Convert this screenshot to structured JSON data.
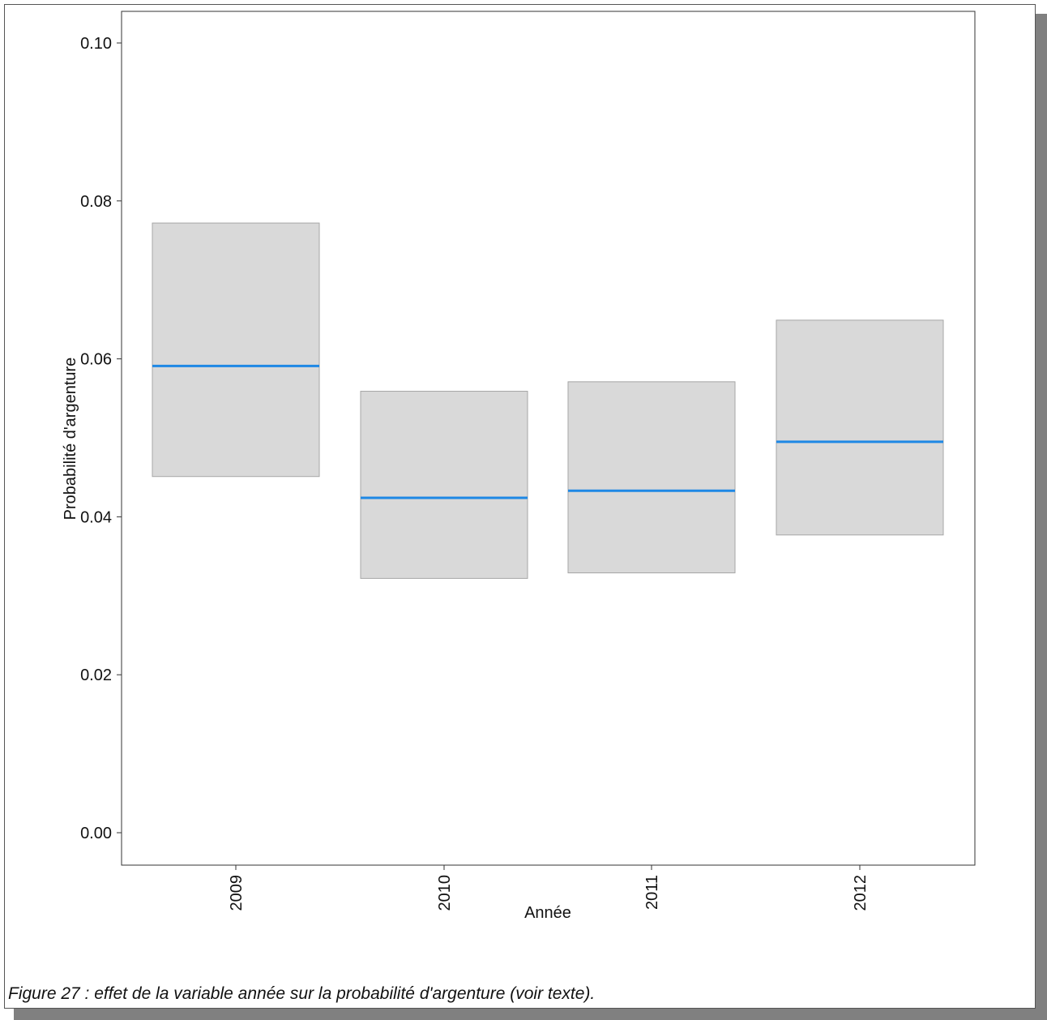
{
  "chart_data": {
    "type": "crossbar",
    "xlabel": "Année",
    "ylabel": "Probabilité d'argenture",
    "categories": [
      "2009",
      "2010",
      "2011",
      "2012"
    ],
    "series": [
      {
        "values": [
          0.0591,
          0.0424,
          0.0433,
          0.0495
        ],
        "lower": [
          0.0451,
          0.0322,
          0.0329,
          0.0377
        ],
        "upper": [
          0.0772,
          0.0559,
          0.0571,
          0.0649
        ]
      }
    ],
    "yticks": [
      "0.00",
      "0.02",
      "0.04",
      "0.06",
      "0.08",
      "0.10"
    ],
    "ylim": [
      0.0,
      0.1
    ],
    "grid": false,
    "colors": {
      "line": "#1e88e5",
      "band": "#d9d9d9",
      "band_border": "#a6a6a6"
    }
  },
  "caption": "Figure 27 : effet de la variable année sur la probabilité d'argenture (voir texte)."
}
